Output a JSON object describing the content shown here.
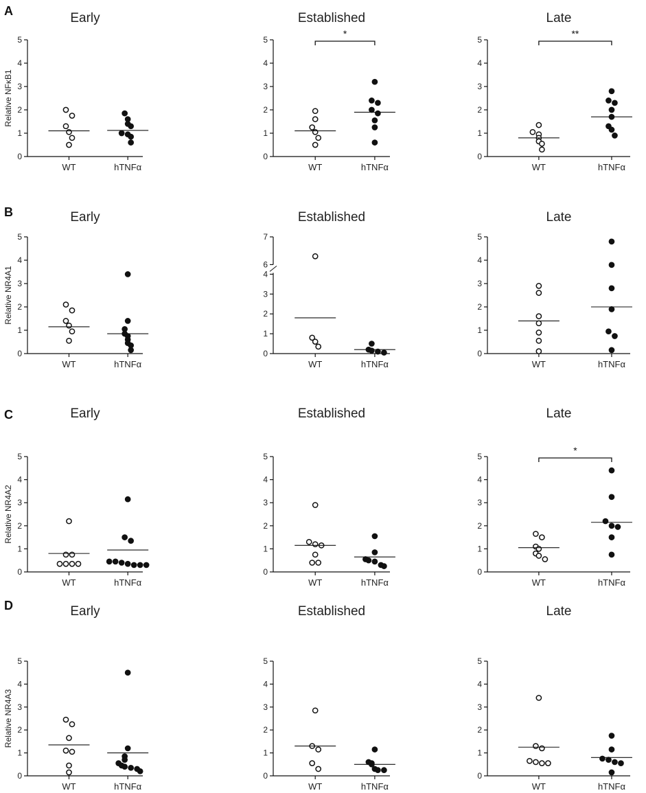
{
  "chart_data": [
    {
      "type": "scatter",
      "row_label": "A",
      "title": "Early",
      "ylabel": "Relative NFκB1",
      "categories": [
        "WT",
        "hTNFα"
      ],
      "ylim": [
        0,
        5
      ],
      "yticks": [
        "0",
        "1",
        "2",
        "3",
        "4",
        "5"
      ],
      "series": [
        {
          "name": "WT",
          "values": [
            2.0,
            1.75,
            1.3,
            1.05,
            0.8,
            0.5
          ]
        },
        {
          "name": "hTNFα",
          "values": [
            1.85,
            1.6,
            1.4,
            1.3,
            1.0,
            0.95,
            0.85,
            0.6
          ]
        }
      ],
      "means": [
        1.1,
        1.12
      ],
      "significance": ""
    },
    {
      "type": "scatter",
      "row_label": "",
      "title": "Established",
      "ylabel": "",
      "categories": [
        "WT",
        "hTNFα"
      ],
      "ylim": [
        0,
        5
      ],
      "yticks": [
        "0",
        "1",
        "2",
        "3",
        "4",
        "5"
      ],
      "series": [
        {
          "name": "WT",
          "values": [
            1.95,
            1.6,
            1.25,
            1.05,
            0.8,
            0.5
          ]
        },
        {
          "name": "hTNFα",
          "values": [
            3.2,
            2.4,
            2.3,
            2.0,
            1.85,
            1.55,
            1.25,
            0.6
          ]
        }
      ],
      "means": [
        1.1,
        1.9
      ],
      "significance": "*"
    },
    {
      "type": "scatter",
      "row_label": "",
      "title": "Late",
      "ylabel": "",
      "categories": [
        "WT",
        "hTNFα"
      ],
      "ylim": [
        0,
        5
      ],
      "yticks": [
        "0",
        "1",
        "2",
        "3",
        "4",
        "5"
      ],
      "series": [
        {
          "name": "WT",
          "values": [
            1.35,
            1.05,
            0.95,
            0.8,
            0.65,
            0.55,
            0.3
          ]
        },
        {
          "name": "hTNFα",
          "values": [
            2.8,
            2.4,
            2.3,
            2.0,
            1.7,
            1.3,
            1.15,
            0.9
          ]
        }
      ],
      "means": [
        0.8,
        1.7
      ],
      "significance": "**"
    },
    {
      "type": "scatter",
      "row_label": "B",
      "title": "Early",
      "ylabel": "Relative NR4A1",
      "categories": [
        "WT",
        "hTNFα"
      ],
      "ylim": [
        0,
        5
      ],
      "yticks": [
        "0",
        "1",
        "2",
        "3",
        "4",
        "5"
      ],
      "series": [
        {
          "name": "WT",
          "values": [
            2.1,
            1.85,
            1.4,
            1.2,
            0.95,
            0.55
          ]
        },
        {
          "name": "hTNFα",
          "values": [
            3.4,
            1.4,
            1.05,
            0.85,
            0.75,
            0.6,
            0.45,
            0.35,
            0.15
          ]
        }
      ],
      "means": [
        1.15,
        0.85
      ],
      "significance": ""
    },
    {
      "type": "scatter",
      "row_label": "",
      "title": "Established",
      "ylabel": "",
      "categories": [
        "WT",
        "hTNFα"
      ],
      "ylim": [
        0,
        7
      ],
      "ybreak": [
        4,
        6
      ],
      "yticks": [
        "0",
        "1",
        "2",
        "3",
        "4",
        "6",
        "7"
      ],
      "series": [
        {
          "name": "WT",
          "values": [
            6.3,
            0.8,
            0.6,
            0.35
          ]
        },
        {
          "name": "hTNFα",
          "values": [
            0.5,
            0.2,
            0.15,
            0.1,
            0.05
          ]
        }
      ],
      "means": [
        1.8,
        0.2
      ],
      "significance": ""
    },
    {
      "type": "scatter",
      "row_label": "",
      "title": "Late",
      "ylabel": "",
      "categories": [
        "WT",
        "hTNFα"
      ],
      "ylim": [
        0,
        5
      ],
      "yticks": [
        "0",
        "1",
        "2",
        "3",
        "4",
        "5"
      ],
      "series": [
        {
          "name": "WT",
          "values": [
            2.9,
            2.6,
            1.6,
            1.3,
            0.9,
            0.55,
            0.1
          ]
        },
        {
          "name": "hTNFα",
          "values": [
            4.8,
            3.8,
            2.8,
            1.9,
            0.95,
            0.75,
            0.15
          ]
        }
      ],
      "means": [
        1.4,
        2.0
      ],
      "significance": ""
    },
    {
      "type": "scatter",
      "row_label": "C",
      "title": "Early",
      "ylabel": "Relative NR4A2",
      "categories": [
        "WT",
        "hTNFα"
      ],
      "ylim": [
        0,
        5
      ],
      "yticks": [
        "0",
        "1",
        "2",
        "3",
        "4",
        "5"
      ],
      "series": [
        {
          "name": "WT",
          "values": [
            2.2,
            0.75,
            0.75,
            0.35,
            0.35,
            0.35,
            0.35
          ]
        },
        {
          "name": "hTNFα",
          "values": [
            3.15,
            1.5,
            1.35,
            0.45,
            0.45,
            0.4,
            0.35,
            0.3,
            0.3,
            0.3
          ]
        }
      ],
      "means": [
        0.8,
        0.95
      ],
      "significance": ""
    },
    {
      "type": "scatter",
      "row_label": "",
      "title": "Established",
      "ylabel": "",
      "categories": [
        "WT",
        "hTNFα"
      ],
      "ylim": [
        0,
        5
      ],
      "yticks": [
        "0",
        "1",
        "2",
        "3",
        "4",
        "5"
      ],
      "series": [
        {
          "name": "WT",
          "values": [
            2.9,
            1.3,
            1.2,
            1.15,
            0.75,
            0.4,
            0.4
          ]
        },
        {
          "name": "hTNFα",
          "values": [
            1.55,
            0.85,
            0.55,
            0.5,
            0.45,
            0.3,
            0.25
          ]
        }
      ],
      "means": [
        1.15,
        0.65
      ],
      "significance": ""
    },
    {
      "type": "scatter",
      "row_label": "",
      "title": "Late",
      "ylabel": "",
      "categories": [
        "WT",
        "hTNFα"
      ],
      "ylim": [
        0,
        5
      ],
      "yticks": [
        "0",
        "1",
        "2",
        "3",
        "4",
        "5"
      ],
      "series": [
        {
          "name": "WT",
          "values": [
            1.65,
            1.5,
            1.1,
            1.0,
            0.8,
            0.7,
            0.55
          ]
        },
        {
          "name": "hTNFα",
          "values": [
            4.4,
            3.25,
            2.2,
            2.0,
            1.95,
            1.5,
            0.75
          ]
        }
      ],
      "means": [
        1.05,
        2.15
      ],
      "significance": "*"
    },
    {
      "type": "scatter",
      "row_label": "D",
      "title": "Early",
      "ylabel": "Relative NR4A3",
      "categories": [
        "WT",
        "hTNFα"
      ],
      "ylim": [
        0,
        5
      ],
      "yticks": [
        "0",
        "1",
        "2",
        "3",
        "4",
        "5"
      ],
      "series": [
        {
          "name": "WT",
          "values": [
            2.45,
            2.25,
            1.65,
            1.1,
            1.05,
            0.45,
            0.15
          ]
        },
        {
          "name": "hTNFα",
          "values": [
            4.5,
            1.2,
            0.85,
            0.7,
            0.55,
            0.45,
            0.4,
            0.35,
            0.3,
            0.2
          ]
        }
      ],
      "means": [
        1.35,
        1.0
      ],
      "significance": ""
    },
    {
      "type": "scatter",
      "row_label": "",
      "title": "Established",
      "ylabel": "",
      "categories": [
        "WT",
        "hTNFα"
      ],
      "ylim": [
        0,
        5
      ],
      "yticks": [
        "0",
        "1",
        "2",
        "3",
        "4",
        "5"
      ],
      "series": [
        {
          "name": "WT",
          "values": [
            2.85,
            1.3,
            1.15,
            0.55,
            0.3
          ]
        },
        {
          "name": "hTNFα",
          "values": [
            1.15,
            0.6,
            0.55,
            0.5,
            0.3,
            0.25,
            0.25
          ]
        }
      ],
      "means": [
        1.3,
        0.5
      ],
      "significance": ""
    },
    {
      "type": "scatter",
      "row_label": "",
      "title": "Late",
      "ylabel": "",
      "categories": [
        "WT",
        "hTNFα"
      ],
      "ylim": [
        0,
        5
      ],
      "yticks": [
        "0",
        "1",
        "2",
        "3",
        "4",
        "5"
      ],
      "series": [
        {
          "name": "WT",
          "values": [
            3.4,
            1.3,
            1.2,
            0.65,
            0.6,
            0.55,
            0.55
          ]
        },
        {
          "name": "hTNFα",
          "values": [
            1.75,
            1.15,
            0.75,
            0.7,
            0.6,
            0.55,
            0.15
          ]
        }
      ],
      "means": [
        1.25,
        0.8
      ],
      "significance": ""
    }
  ]
}
